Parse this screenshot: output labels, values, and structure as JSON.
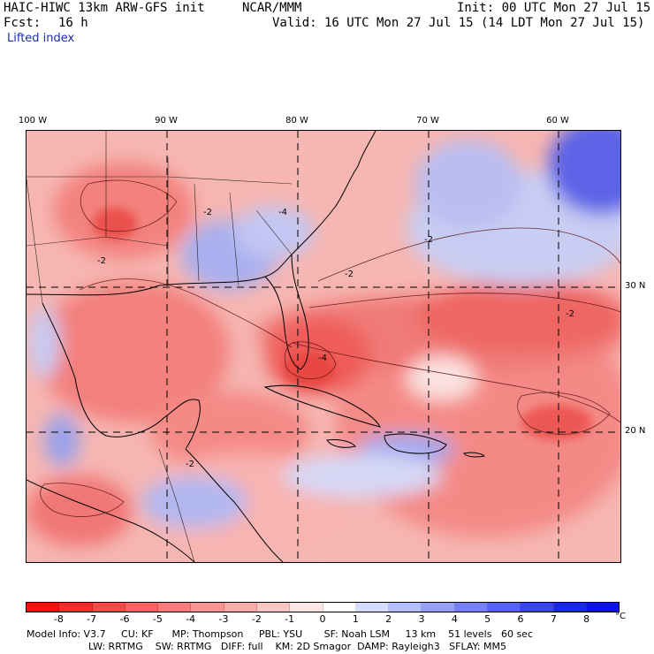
{
  "header": {
    "model_title": "HAIC-HIWC 13km ARW-GFS init",
    "org": "NCAR/MMM",
    "init_time": "Init: 00 UTC Mon 27 Jul 15",
    "forecast_label": "Fcst:",
    "forecast_hours": "16 h",
    "valid_time": "Valid: 16 UTC Mon 27 Jul 15 (14 LDT Mon 27 Jul 15)",
    "field_name": "Lifted index"
  },
  "map": {
    "longitude_labels": [
      "100 W",
      "90 W",
      "80 W",
      "70 W",
      "60 W"
    ],
    "latitude_labels": [
      "30 N",
      "20 N"
    ],
    "contour_labels": [
      "-2",
      "-2",
      "-2",
      "-4",
      "-2",
      "-2",
      "-2",
      "-4"
    ]
  },
  "colorbar": {
    "unit": "°C",
    "tick_labels": [
      "-8",
      "-7",
      "-6",
      "-5",
      "-4",
      "-3",
      "-2",
      "-1",
      "0",
      "1",
      "2",
      "3",
      "4",
      "5",
      "6",
      "7",
      "8"
    ],
    "colors": [
      "#ff0d0d",
      "#ff2b2b",
      "#ff4747",
      "#ff6161",
      "#fd7a7a",
      "#fc9292",
      "#fbaaaa",
      "#f9c5c5",
      "#fde6e6",
      "#ffffff",
      "#d6dcff",
      "#b5bdff",
      "#969ffa",
      "#7780f8",
      "#5862f7",
      "#3944f6",
      "#1927f5",
      "#0a12f2"
    ]
  },
  "footer": {
    "line1": "Model Info: V3.7     CU: KF      MP: Thompson     PBL: YSU       SF: Noah LSM     13 km    51 levels   60 sec",
    "line2": "LW: RRTMG    SW: RRTMG   DIFF: full    KM: 2D Smagor  DAMP: Rayleigh3   SFLAY: MM5"
  }
}
